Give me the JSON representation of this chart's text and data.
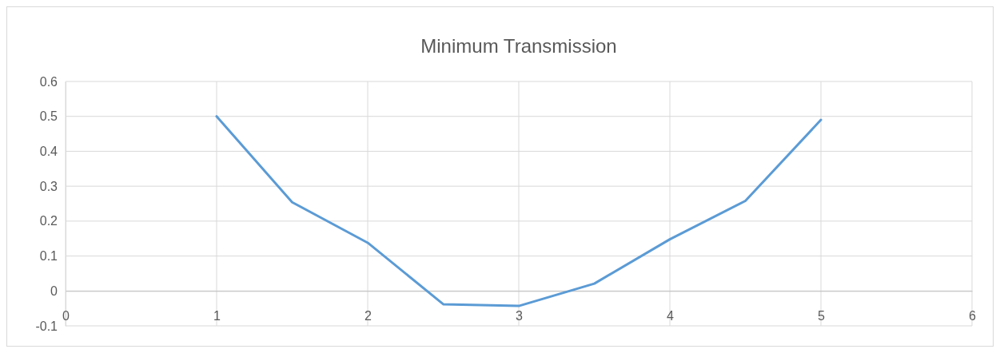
{
  "chart_data": {
    "type": "line",
    "title": "Minimum Transmission",
    "x": [
      1,
      1.5,
      2,
      2.5,
      3,
      3.5,
      4,
      4.5,
      5
    ],
    "series": [
      {
        "color": "#5b9bd5",
        "values": [
          0.5,
          0.254,
          0.138,
          -0.038,
          -0.043,
          0.021,
          0.148,
          0.258,
          0.49
        ]
      }
    ],
    "xlim": [
      0,
      6
    ],
    "xticks": [
      0,
      1,
      2,
      3,
      4,
      5,
      6
    ],
    "ylim": [
      -0.1,
      0.6
    ],
    "yticks": [
      -0.1,
      0,
      0.1,
      0.2,
      0.3,
      0.4,
      0.5,
      0.6
    ],
    "grid": true,
    "marker": "none",
    "line_style": "solid"
  }
}
